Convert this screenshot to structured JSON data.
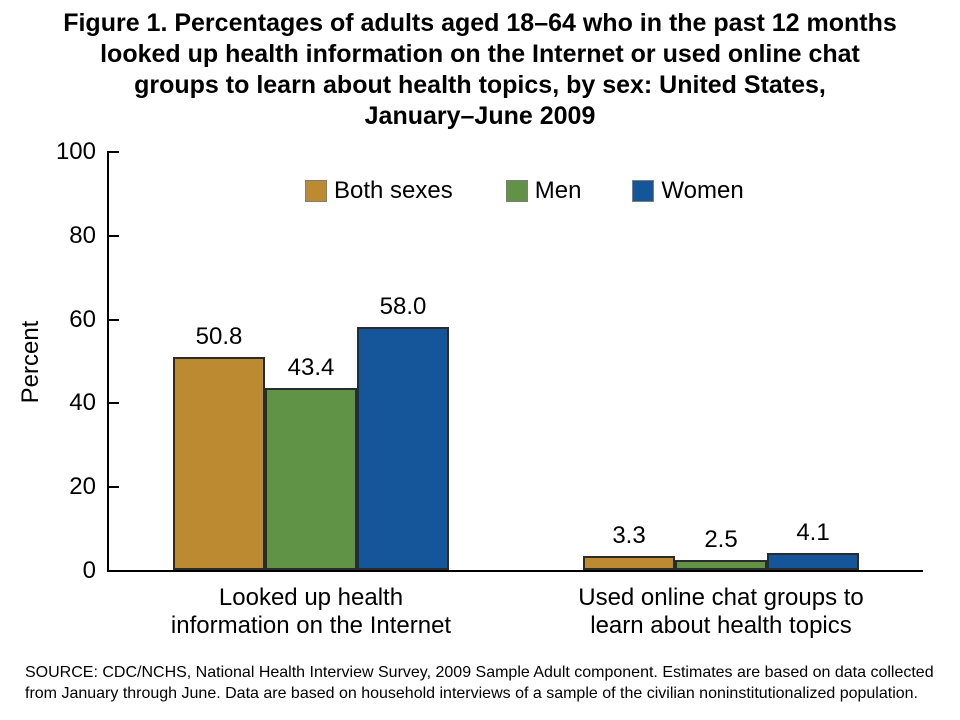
{
  "chart_data": {
    "type": "bar",
    "title": "Figure 1. Percentages of adults aged 18–64 who in the past 12 months\nlooked up health information on the Internet or used online chat\ngroups to learn about health topics, by sex: United States,\nJanuary–June 2009",
    "categories": [
      "Looked up health\ninformation on the Internet",
      "Used online chat groups to\nlearn about health topics"
    ],
    "series": [
      {
        "name": "Both sexes",
        "color": "#bc8a30",
        "values": [
          50.8,
          3.3
        ]
      },
      {
        "name": "Men",
        "color": "#609345",
        "values": [
          43.4,
          2.5
        ]
      },
      {
        "name": "Women",
        "color": "#15569b",
        "values": [
          58.0,
          4.1
        ]
      }
    ],
    "value_label_decimals": 1,
    "xlabel": "",
    "ylabel": "Percent",
    "ylim": [
      0,
      100
    ],
    "yticks": [
      0,
      20,
      40,
      60,
      80,
      100
    ],
    "grid": false,
    "legend_position": "top-center",
    "axis_color": "#000000",
    "bar_border_color": "#2b2b2b"
  },
  "source": {
    "text": "SOURCE: CDC/NCHS, National Health Interview Survey, 2009 Sample Adult component. Estimates are based on data collected\nfrom January through June. Data are based on household interviews of a sample of the civilian noninstitutionalized population."
  }
}
